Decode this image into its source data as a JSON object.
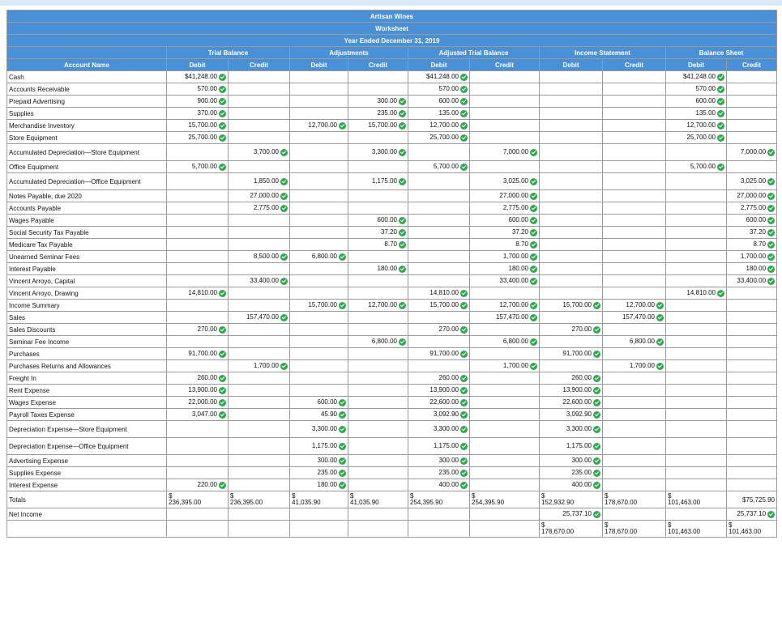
{
  "title": "Artisan Wines",
  "subtitle": "Worksheet",
  "period": "Year Ended December 31, 2019",
  "groups": [
    "Trial Balance",
    "Adjustments",
    "Adjusted Trial Balance",
    "Income Statement",
    "Balance Sheet"
  ],
  "account_header": "Account Name",
  "debit": "Debit",
  "credit": "Credit",
  "rows": [
    {
      "name": "Cash",
      "v": [
        "$41,248.00",
        "",
        "",
        "",
        "$41,248.00",
        "",
        "",
        "",
        "$41,248.00",
        ""
      ]
    },
    {
      "name": "Accounts Receivable",
      "v": [
        "570.00",
        "",
        "",
        "",
        "570.00",
        "",
        "",
        "",
        "570.00",
        ""
      ]
    },
    {
      "name": "Prepaid Advertising",
      "v": [
        "900.00",
        "",
        "",
        "300.00",
        "600.00",
        "",
        "",
        "",
        "600.00",
        ""
      ]
    },
    {
      "name": "Supplies",
      "v": [
        "370.00",
        "",
        "",
        "235.00",
        "135.00",
        "",
        "",
        "",
        "135.00",
        ""
      ]
    },
    {
      "name": "Merchandise Inventory",
      "v": [
        "15,700.00",
        "",
        "12,700.00",
        "15,700.00",
        "12,700.00",
        "",
        "",
        "",
        "12,700.00",
        ""
      ]
    },
    {
      "name": "Store Equipment",
      "v": [
        "25,700.00",
        "",
        "",
        "",
        "25,700.00",
        "",
        "",
        "",
        "25,700.00",
        ""
      ]
    },
    {
      "name": "Accumulated Depreciation—Store Equipment",
      "v": [
        "",
        "3,700.00",
        "",
        "3,300.00",
        "",
        "7,000.00",
        "",
        "",
        "",
        "7,000.00"
      ]
    },
    {
      "name": "Office Equipment",
      "v": [
        "5,700.00",
        "",
        "",
        "",
        "5,700.00",
        "",
        "",
        "",
        "5,700.00",
        ""
      ]
    },
    {
      "name": "Accumulated Depreciation—Office Equipment",
      "v": [
        "",
        "1,850.00",
        "",
        "1,175.00",
        "",
        "3,025.00",
        "",
        "",
        "",
        "3,025.00"
      ]
    },
    {
      "name": "Notes Payable, due 2020",
      "v": [
        "",
        "27,000.00",
        "",
        "",
        "",
        "27,000.00",
        "",
        "",
        "",
        "27,000.00"
      ]
    },
    {
      "name": "Accounts Payable",
      "v": [
        "",
        "2,775.00",
        "",
        "",
        "",
        "2,775.00",
        "",
        "",
        "",
        "2,775.00"
      ]
    },
    {
      "name": "Wages Payable",
      "v": [
        "",
        "",
        "",
        "600.00",
        "",
        "600.00",
        "",
        "",
        "",
        "600.00"
      ]
    },
    {
      "name": "Social Security Tax Payable",
      "v": [
        "",
        "",
        "",
        "37.20",
        "",
        "37.20",
        "",
        "",
        "",
        "37.20"
      ]
    },
    {
      "name": "Medicare Tax Payable",
      "v": [
        "",
        "",
        "",
        "8.70",
        "",
        "8.70",
        "",
        "",
        "",
        "8.70"
      ]
    },
    {
      "name": "Unearned Seminar Fees",
      "v": [
        "",
        "8,500.00",
        "6,800.00",
        "",
        "",
        "1,700.00",
        "",
        "",
        "",
        "1,700.00"
      ]
    },
    {
      "name": "Interest Payable",
      "v": [
        "",
        "",
        "",
        "180.00",
        "",
        "180.00",
        "",
        "",
        "",
        "180.00"
      ]
    },
    {
      "name": "Vincent Arroyo, Capital",
      "v": [
        "",
        "33,400.00",
        "",
        "",
        "",
        "33,400.00",
        "",
        "",
        "",
        "33,400.00"
      ]
    },
    {
      "name": "Vincent Arroyo, Drawing",
      "v": [
        "14,810.00",
        "",
        "",
        "",
        "14,810.00",
        "",
        "",
        "",
        "14,810.00",
        ""
      ]
    },
    {
      "name": "Income Summary",
      "v": [
        "",
        "",
        "15,700.00",
        "12,700.00",
        "15,700.00",
        "12,700.00",
        "15,700.00",
        "12,700.00",
        "",
        ""
      ]
    },
    {
      "name": "Sales",
      "v": [
        "",
        "157,470.00",
        "",
        "",
        "",
        "157,470.00",
        "",
        "157,470.00",
        "",
        ""
      ]
    },
    {
      "name": "Sales Discounts",
      "v": [
        "270.00",
        "",
        "",
        "",
        "270.00",
        "",
        "270.00",
        "",
        "",
        ""
      ]
    },
    {
      "name": "Seminar Fee Income",
      "v": [
        "",
        "",
        "",
        "6,800.00",
        "",
        "6,800.00",
        "",
        "6,800.00",
        "",
        ""
      ]
    },
    {
      "name": "Purchases",
      "v": [
        "91,700.00",
        "",
        "",
        "",
        "91,700.00",
        "",
        "91,700.00",
        "",
        "",
        ""
      ]
    },
    {
      "name": "Purchases Returns and Allowances",
      "v": [
        "",
        "1,700.00",
        "",
        "",
        "",
        "1,700.00",
        "",
        "1,700.00",
        "",
        ""
      ]
    },
    {
      "name": "Freight In",
      "v": [
        "260.00",
        "",
        "",
        "",
        "260.00",
        "",
        "260.00",
        "",
        "",
        ""
      ]
    },
    {
      "name": "Rent Expense",
      "v": [
        "13,900.00",
        "",
        "",
        "",
        "13,900.00",
        "",
        "13,900.00",
        "",
        "",
        ""
      ]
    },
    {
      "name": "Wages Expense",
      "v": [
        "22,000.00",
        "",
        "600.00",
        "",
        "22,600.00",
        "",
        "22,600.00",
        "",
        "",
        ""
      ]
    },
    {
      "name": "Payroll Taxes Expense",
      "v": [
        "3,047.00",
        "",
        "45.90",
        "",
        "3,092.90",
        "",
        "3,092.90",
        "",
        "",
        ""
      ]
    },
    {
      "name": "Depreciation Expense—Store Equipment",
      "v": [
        "",
        "",
        "3,300.00",
        "",
        "3,300.00",
        "",
        "3,300.00",
        "",
        "",
        ""
      ]
    },
    {
      "name": "Depreciation Expense—Office Equipment",
      "v": [
        "",
        "",
        "1,175.00",
        "",
        "1,175.00",
        "",
        "1,175.00",
        "",
        "",
        ""
      ]
    },
    {
      "name": "Advertising Expense",
      "v": [
        "",
        "",
        "300.00",
        "",
        "300.00",
        "",
        "300.00",
        "",
        "",
        ""
      ]
    },
    {
      "name": "Supplies Expense",
      "v": [
        "",
        "",
        "235.00",
        "",
        "235.00",
        "",
        "235.00",
        "",
        "",
        ""
      ]
    },
    {
      "name": "Interest Expense",
      "v": [
        "220.00",
        "",
        "180.00",
        "",
        "400.00",
        "",
        "400.00",
        "",
        "",
        ""
      ]
    }
  ],
  "totals": {
    "name": "Totals",
    "v": [
      "236,395.00",
      "236,395.00",
      "41,035.90",
      "41,035.90",
      "254,395.90",
      "254,395.90",
      "152,932.90",
      "178,670.00",
      "101,463.00",
      "$75,725.90"
    ]
  },
  "net_income": {
    "name": "Net Income",
    "v": [
      "",
      "",
      "",
      "",
      "",
      "",
      "25,737.10",
      "",
      "",
      "25,737.10"
    ]
  },
  "final": {
    "v": [
      "",
      "",
      "",
      "",
      "",
      "",
      "178,670.00",
      "178,670.00",
      "101,463.00",
      "101,463.00"
    ]
  }
}
